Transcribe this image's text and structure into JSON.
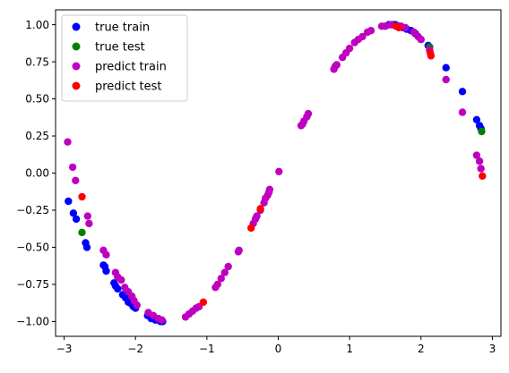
{
  "chart_data": {
    "type": "scatter",
    "title": "",
    "xlabel": "",
    "ylabel": "",
    "xlim": [
      -3.12,
      3.12
    ],
    "ylim": [
      -1.1,
      1.1
    ],
    "xticks": [
      -3,
      -2,
      -1,
      0,
      1,
      2,
      3
    ],
    "xtick_labels": [
      "−3",
      "−2",
      "−1",
      "0",
      "1",
      "2",
      "3"
    ],
    "yticks": [
      -1.0,
      -0.75,
      -0.5,
      -0.25,
      0.0,
      0.25,
      0.5,
      0.75,
      1.0
    ],
    "ytick_labels": [
      "−1.00",
      "−0.75",
      "−0.50",
      "−0.25",
      "0.00",
      "0.25",
      "0.50",
      "0.75",
      "1.00"
    ],
    "grid": false,
    "legend_position": "upper-left",
    "series": [
      {
        "name": "true train",
        "color": "#0000ff",
        "points": [
          [
            -2.94,
            -0.19
          ],
          [
            -2.87,
            -0.27
          ],
          [
            -2.83,
            -0.31
          ],
          [
            -2.7,
            -0.47
          ],
          [
            -2.68,
            -0.5
          ],
          [
            -2.45,
            -0.62
          ],
          [
            -2.43,
            -0.63
          ],
          [
            -2.41,
            -0.66
          ],
          [
            -2.3,
            -0.74
          ],
          [
            -2.28,
            -0.76
          ],
          [
            -2.25,
            -0.78
          ],
          [
            -2.18,
            -0.82
          ],
          [
            -2.14,
            -0.84
          ],
          [
            -2.1,
            -0.87
          ],
          [
            -2.06,
            -0.88
          ],
          [
            -2.03,
            -0.9
          ],
          [
            -2.0,
            -0.91
          ],
          [
            -1.83,
            -0.96
          ],
          [
            -1.78,
            -0.98
          ],
          [
            -1.72,
            -0.99
          ],
          [
            -1.65,
            -1.0
          ],
          [
            -1.62,
            -1.0
          ],
          [
            1.55,
            1.0
          ],
          [
            1.6,
            1.0
          ],
          [
            1.64,
            1.0
          ],
          [
            1.7,
            0.99
          ],
          [
            1.75,
            0.98
          ],
          [
            1.8,
            0.97
          ],
          [
            1.86,
            0.96
          ],
          [
            1.92,
            0.94
          ],
          [
            2.1,
            0.86
          ],
          [
            2.35,
            0.71
          ],
          [
            2.58,
            0.55
          ],
          [
            2.78,
            0.36
          ],
          [
            2.82,
            0.32
          ],
          [
            2.84,
            0.3
          ]
        ]
      },
      {
        "name": "true test",
        "color": "#008000",
        "points": [
          [
            -2.75,
            -0.4
          ],
          [
            2.12,
            0.85
          ],
          [
            2.85,
            0.28
          ]
        ]
      },
      {
        "name": "predict train",
        "color": "#bf00bf",
        "points": [
          [
            -2.95,
            0.21
          ],
          [
            -2.88,
            0.04
          ],
          [
            -2.84,
            -0.05
          ],
          [
            -2.67,
            -0.29
          ],
          [
            -2.65,
            -0.34
          ],
          [
            -2.45,
            -0.52
          ],
          [
            -2.41,
            -0.55
          ],
          [
            -2.28,
            -0.67
          ],
          [
            -2.25,
            -0.7
          ],
          [
            -2.2,
            -0.72
          ],
          [
            -2.15,
            -0.77
          ],
          [
            -2.1,
            -0.8
          ],
          [
            -2.05,
            -0.83
          ],
          [
            -2.02,
            -0.86
          ],
          [
            -1.98,
            -0.89
          ],
          [
            -1.82,
            -0.94
          ],
          [
            -1.75,
            -0.96
          ],
          [
            -1.68,
            -0.98
          ],
          [
            -1.63,
            -0.99
          ],
          [
            -1.3,
            -0.97
          ],
          [
            -1.25,
            -0.95
          ],
          [
            -1.2,
            -0.93
          ],
          [
            -1.15,
            -0.91
          ],
          [
            -1.11,
            -0.9
          ],
          [
            -0.88,
            -0.77
          ],
          [
            -0.85,
            -0.75
          ],
          [
            -0.8,
            -0.71
          ],
          [
            -0.75,
            -0.67
          ],
          [
            -0.7,
            -0.63
          ],
          [
            -0.56,
            -0.53
          ],
          [
            -0.55,
            -0.52
          ],
          [
            -0.35,
            -0.34
          ],
          [
            -0.32,
            -0.31
          ],
          [
            -0.3,
            -0.29
          ],
          [
            -0.25,
            -0.25
          ],
          [
            -0.2,
            -0.2
          ],
          [
            -0.18,
            -0.17
          ],
          [
            -0.15,
            -0.15
          ],
          [
            -0.13,
            -0.13
          ],
          [
            -0.12,
            -0.11
          ],
          [
            0.01,
            0.01
          ],
          [
            0.32,
            0.32
          ],
          [
            0.34,
            0.33
          ],
          [
            0.36,
            0.35
          ],
          [
            0.4,
            0.38
          ],
          [
            0.42,
            0.4
          ],
          [
            0.78,
            0.7
          ],
          [
            0.8,
            0.72
          ],
          [
            0.82,
            0.73
          ],
          [
            0.9,
            0.78
          ],
          [
            0.95,
            0.81
          ],
          [
            1.0,
            0.84
          ],
          [
            1.07,
            0.88
          ],
          [
            1.12,
            0.9
          ],
          [
            1.18,
            0.92
          ],
          [
            1.25,
            0.95
          ],
          [
            1.3,
            0.96
          ],
          [
            1.45,
            0.99
          ],
          [
            1.5,
            0.99
          ],
          [
            1.58,
            1.0
          ],
          [
            1.72,
            0.99
          ],
          [
            1.78,
            0.98
          ],
          [
            1.9,
            0.95
          ],
          [
            1.96,
            0.92
          ],
          [
            2.0,
            0.9
          ],
          [
            2.12,
            0.83
          ],
          [
            2.35,
            0.63
          ],
          [
            2.58,
            0.41
          ],
          [
            2.78,
            0.12
          ],
          [
            2.82,
            0.08
          ],
          [
            2.84,
            0.03
          ]
        ]
      },
      {
        "name": "predict test",
        "color": "#ff0000",
        "points": [
          [
            -2.75,
            -0.16
          ],
          [
            -1.05,
            -0.87
          ],
          [
            -0.38,
            -0.37
          ],
          [
            -0.25,
            -0.24
          ],
          [
            1.65,
            0.99
          ],
          [
            1.69,
            0.98
          ],
          [
            2.13,
            0.81
          ],
          [
            2.14,
            0.79
          ],
          [
            2.86,
            -0.02
          ]
        ]
      }
    ]
  }
}
